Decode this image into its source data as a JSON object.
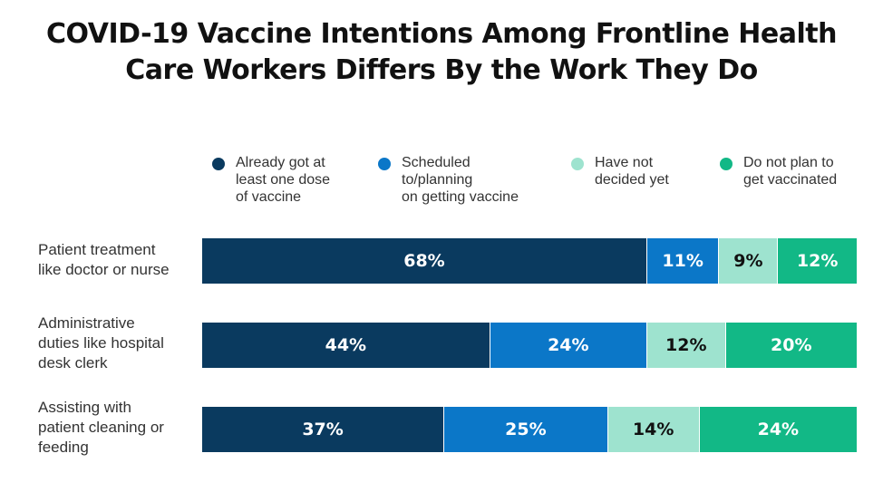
{
  "title_lines": [
    "COVID-19 Vaccine Intentions Among Frontline Health",
    "Care Workers Differs By the Work They Do"
  ],
  "chart_data": {
    "type": "bar",
    "orientation": "horizontal",
    "stacked": true,
    "title": "COVID-19 Vaccine Intentions Among Frontline Health Care Workers Differs By the Work They Do",
    "xlim": [
      0,
      100
    ],
    "legend_position": "top",
    "categories": [
      "Patient treatment\nlike doctor or nurse",
      "Administrative\nduties like hospital\ndesk clerk",
      "Assisting with\npatient cleaning or\nfeeding"
    ],
    "series": [
      {
        "name": "Already got at\nleast one dose\nof vaccine",
        "color": "#0a3a5f",
        "text_color": "#ffffff",
        "values": [
          68,
          44,
          37
        ]
      },
      {
        "name": "Scheduled\nto/planning\non getting vaccine",
        "color": "#0b77c8",
        "text_color": "#ffffff",
        "values": [
          11,
          24,
          25
        ]
      },
      {
        "name": "Have not\ndecided yet",
        "color": "#9ee3cf",
        "text_color": "#111111",
        "values": [
          9,
          12,
          14
        ]
      },
      {
        "name": "Do not plan to\nget vaccinated",
        "color": "#12b886",
        "text_color": "#ffffff",
        "values": [
          12,
          20,
          24
        ]
      }
    ],
    "value_suffix": "%"
  }
}
